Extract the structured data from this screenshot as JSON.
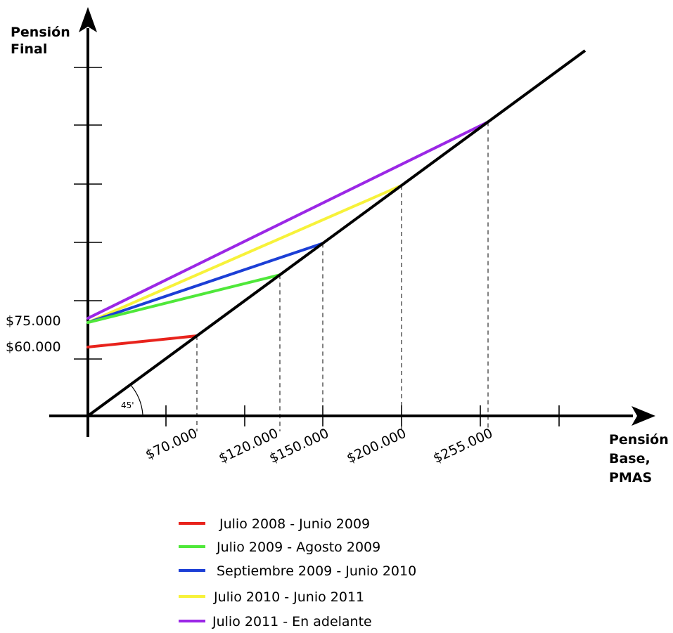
{
  "chart_data": {
    "type": "line",
    "x_axis": {
      "label_lines": [
        "Pensión",
        "Base,",
        "PMAS"
      ],
      "tick_labels": [
        "$70.000",
        "$120.000",
        "$150.000",
        "$200.000",
        "$255.000"
      ],
      "tick_values": [
        70000,
        120000,
        150000,
        200000,
        255000
      ]
    },
    "y_axis": {
      "label_lines": [
        "Pensión",
        "Final"
      ],
      "tick_labels": [
        "$75.000",
        "$60.000"
      ],
      "tick_values": [
        75000,
        60000
      ]
    },
    "reference_line": {
      "label": "45'",
      "slope": 1
    },
    "series": [
      {
        "name": "Julio 2008 - Junio 2009",
        "color": "#e8231c",
        "points": [
          {
            "x": 0,
            "y": 60000
          },
          {
            "x": 70000,
            "y": 70000
          }
        ],
        "end_x": 70000
      },
      {
        "name": "Julio 2009 - Agosto 2009",
        "color": "#4fe83a",
        "points": [
          {
            "x": 0,
            "y": 75000
          },
          {
            "x": 120000,
            "y": 120000
          }
        ],
        "end_x": 120000
      },
      {
        "name": "Septiembre 2009 - Junio 2010",
        "color": "#1c3fd6",
        "points": [
          {
            "x": 0,
            "y": 75000
          },
          {
            "x": 150000,
            "y": 150000
          }
        ],
        "end_x": 150000
      },
      {
        "name": "Julio 2010 - Junio 2011",
        "color": "#f7f23a",
        "points": [
          {
            "x": 0,
            "y": 75000
          },
          {
            "x": 200000,
            "y": 200000
          }
        ],
        "end_x": 200000
      },
      {
        "name": "Julio 2011 - En adelante",
        "color": "#9b27e6",
        "points": [
          {
            "x": 0,
            "y": 77000
          },
          {
            "x": 255000,
            "y": 255000
          }
        ],
        "end_x": 255000
      }
    ]
  }
}
